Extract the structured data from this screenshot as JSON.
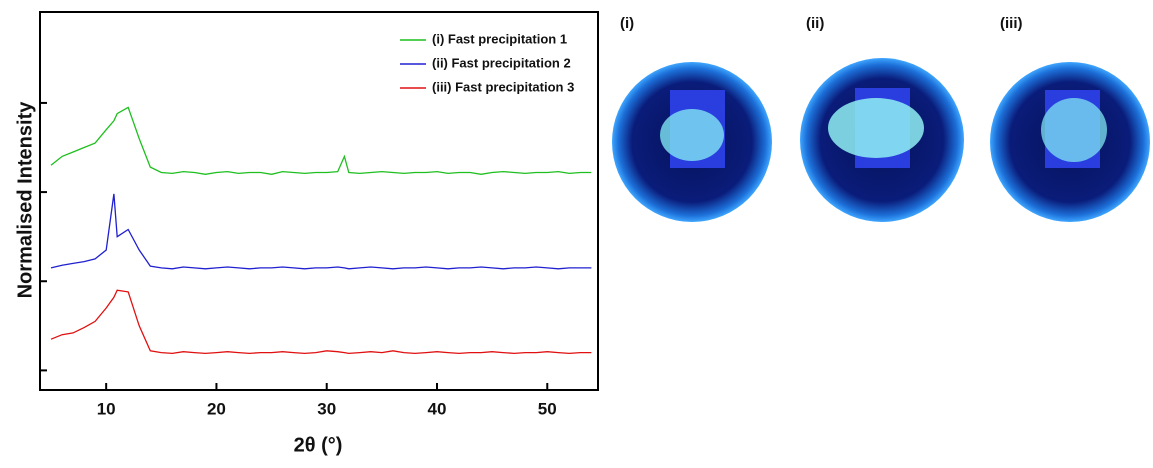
{
  "chart_data": {
    "type": "line",
    "xlabel": "2θ (°)",
    "ylabel": "Normalised Intensity",
    "x": [
      5,
      6,
      7,
      8,
      9,
      10,
      10.7,
      11,
      12,
      13,
      14,
      15,
      16,
      17,
      18,
      19,
      20,
      21,
      22,
      23,
      24,
      25,
      26,
      27,
      28,
      29,
      30,
      31,
      31.6,
      32,
      33,
      34,
      35,
      36,
      37,
      38,
      39,
      40,
      41,
      42,
      43,
      44,
      45,
      46,
      47,
      48,
      49,
      50,
      51,
      52,
      53,
      54
    ],
    "series": [
      {
        "name": "(i) Fast precipitation 1",
        "color": "#1fbf1f",
        "values": [
          2.3,
          2.4,
          2.45,
          2.5,
          2.55,
          2.7,
          2.8,
          2.88,
          2.95,
          2.6,
          2.28,
          2.22,
          2.21,
          2.23,
          2.22,
          2.2,
          2.22,
          2.23,
          2.21,
          2.22,
          2.22,
          2.2,
          2.23,
          2.22,
          2.21,
          2.22,
          2.22,
          2.23,
          2.4,
          2.22,
          2.21,
          2.22,
          2.23,
          2.22,
          2.21,
          2.22,
          2.22,
          2.23,
          2.21,
          2.22,
          2.22,
          2.2,
          2.22,
          2.23,
          2.22,
          2.21,
          2.22,
          2.22,
          2.23,
          2.21,
          2.22,
          2.22
        ]
      },
      {
        "name": "(ii) Fast precipitation 2",
        "color": "#2020d0",
        "values": [
          1.15,
          1.18,
          1.2,
          1.22,
          1.25,
          1.35,
          1.98,
          1.5,
          1.58,
          1.35,
          1.17,
          1.15,
          1.14,
          1.16,
          1.15,
          1.14,
          1.15,
          1.16,
          1.15,
          1.14,
          1.15,
          1.15,
          1.16,
          1.15,
          1.14,
          1.15,
          1.15,
          1.16,
          1.15,
          1.14,
          1.15,
          1.16,
          1.15,
          1.14,
          1.15,
          1.15,
          1.16,
          1.15,
          1.14,
          1.15,
          1.15,
          1.16,
          1.15,
          1.14,
          1.15,
          1.15,
          1.16,
          1.15,
          1.14,
          1.15,
          1.15,
          1.15
        ]
      },
      {
        "name": "(iii) Fast precipitation 3",
        "color": "#e01010",
        "values": [
          0.35,
          0.4,
          0.42,
          0.48,
          0.55,
          0.7,
          0.82,
          0.9,
          0.88,
          0.5,
          0.22,
          0.2,
          0.19,
          0.21,
          0.2,
          0.19,
          0.2,
          0.21,
          0.2,
          0.19,
          0.2,
          0.2,
          0.21,
          0.2,
          0.19,
          0.2,
          0.22,
          0.21,
          0.2,
          0.19,
          0.2,
          0.21,
          0.2,
          0.22,
          0.2,
          0.19,
          0.2,
          0.21,
          0.2,
          0.19,
          0.2,
          0.2,
          0.21,
          0.2,
          0.19,
          0.2,
          0.2,
          0.21,
          0.2,
          0.19,
          0.2,
          0.2
        ]
      }
    ],
    "xlim": [
      4,
      54.6
    ],
    "xticks": [
      10,
      20,
      30,
      40,
      50
    ],
    "ylim": [
      -0.22,
      4.02
    ],
    "yticks": [
      0,
      1,
      2,
      3
    ],
    "ytick_labels": false,
    "legend": "upper right"
  },
  "photos": {
    "labels": [
      "(i)",
      "(ii)",
      "(iii)"
    ]
  }
}
